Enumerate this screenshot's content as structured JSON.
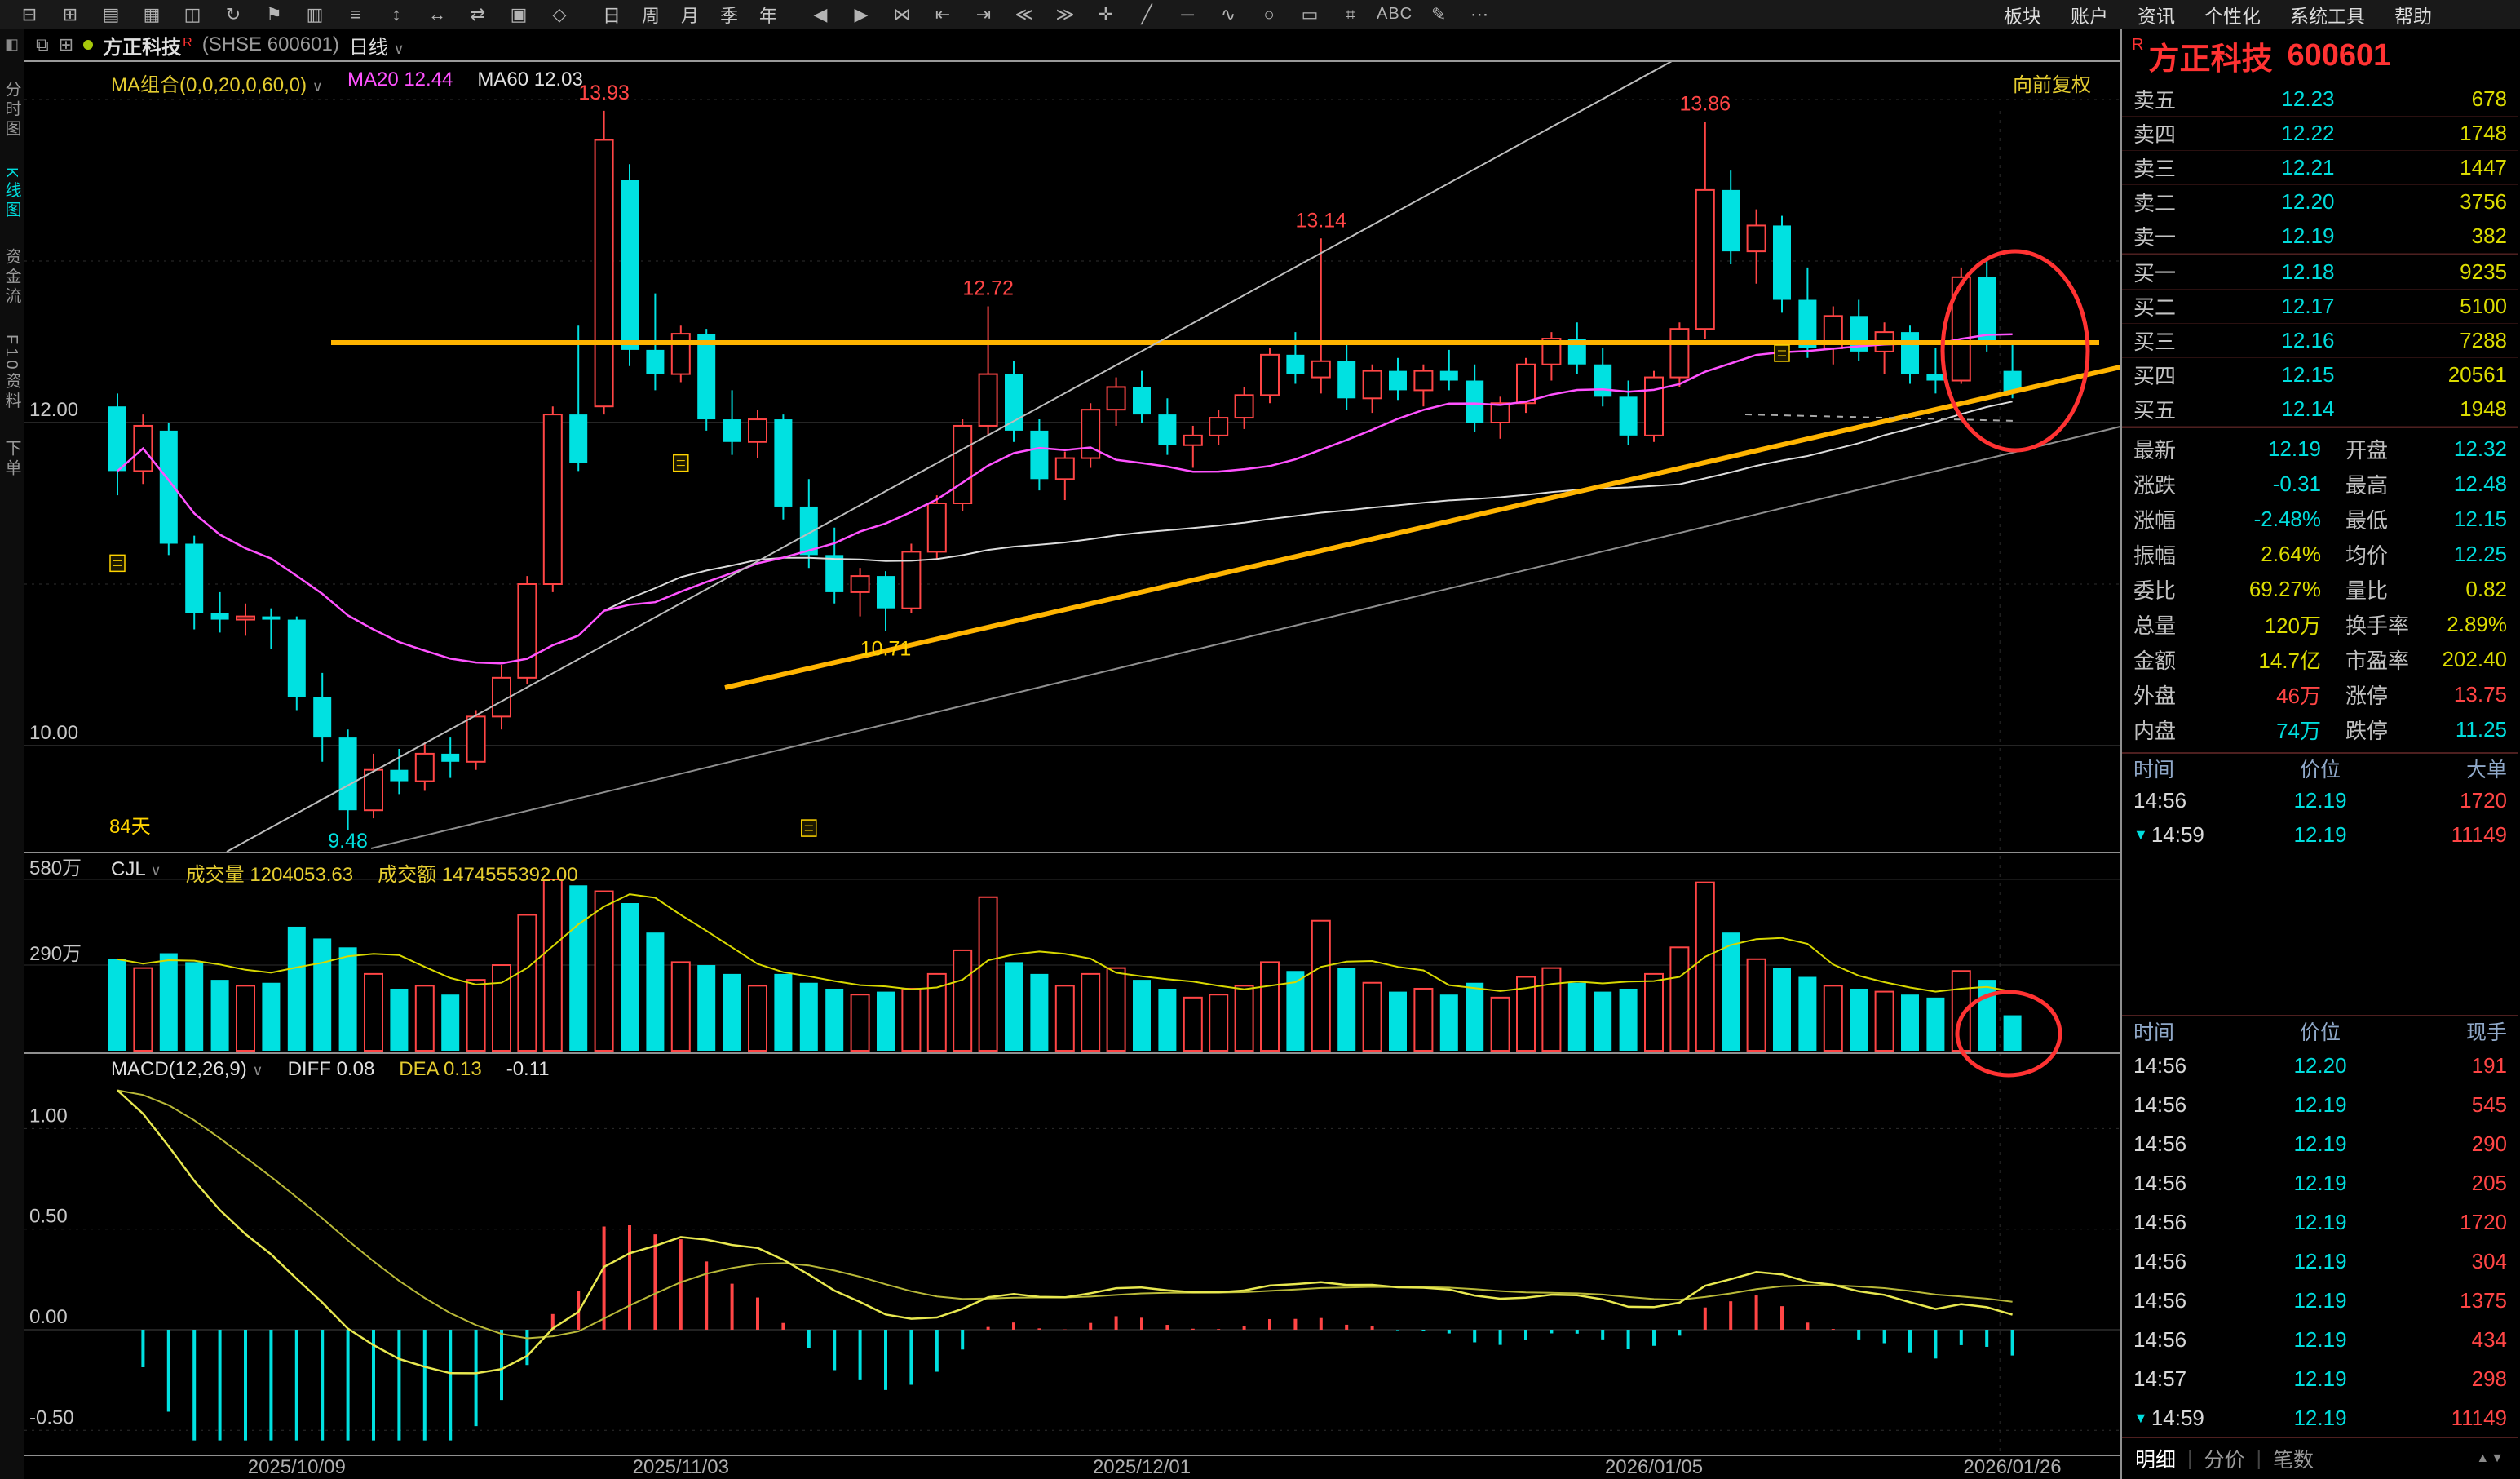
{
  "toolbar": {
    "icons_left": [
      {
        "name": "link-windows-icon",
        "glyph": "⊟"
      },
      {
        "name": "grid-layout-icon",
        "glyph": "⊞"
      },
      {
        "name": "chart-panel-icon",
        "glyph": "▤"
      },
      {
        "name": "quote-board-icon",
        "glyph": "▦"
      },
      {
        "name": "split-view-icon",
        "glyph": "◫"
      },
      {
        "name": "refresh-icon",
        "glyph": "↻"
      },
      {
        "name": "alert-icon",
        "glyph": "⚑"
      },
      {
        "name": "info-panel-icon",
        "glyph": "▥"
      },
      {
        "name": "list-view-icon",
        "glyph": "≡"
      },
      {
        "name": "expand-vertical-icon",
        "glyph": "↕"
      },
      {
        "name": "expand-horizontal-icon",
        "glyph": "↔"
      },
      {
        "name": "swap-panels-icon",
        "glyph": "⇄"
      },
      {
        "name": "overlay-icon",
        "glyph": "▣"
      },
      {
        "name": "indicator-icon",
        "glyph": "◇"
      }
    ],
    "periods": [
      "日",
      "周",
      "月",
      "季",
      "年"
    ],
    "icons_mid": [
      {
        "name": "prev-bar-icon",
        "glyph": "◀"
      },
      {
        "name": "next-bar-icon",
        "glyph": "▶"
      },
      {
        "name": "compare-icon",
        "glyph": "⋈"
      },
      {
        "name": "jump-start-icon",
        "glyph": "⇤"
      },
      {
        "name": "jump-end-icon",
        "glyph": "⇥"
      },
      {
        "name": "zoom-out-icon",
        "glyph": "≪"
      },
      {
        "name": "zoom-in-icon",
        "glyph": "≫"
      },
      {
        "name": "crosshair-tool-icon",
        "glyph": "✛"
      },
      {
        "name": "trendline-tool-icon",
        "glyph": "╱"
      },
      {
        "name": "horizontal-line-tool-icon",
        "glyph": "─"
      },
      {
        "name": "wave-tool-icon",
        "glyph": "∿"
      },
      {
        "name": "ellipse-tool-icon",
        "glyph": "○"
      },
      {
        "name": "rectangle-tool-icon",
        "glyph": "▭"
      },
      {
        "name": "channel-tool-icon",
        "glyph": "⌗"
      }
    ],
    "text_tool": "ABC",
    "icons_right": [
      {
        "name": "pen-tool-icon",
        "glyph": "✎"
      },
      {
        "name": "more-tools-icon",
        "glyph": "⋯"
      }
    ],
    "menu": [
      "板块",
      "账户",
      "资讯",
      "个性化",
      "系统工具",
      "帮助"
    ]
  },
  "sidebar": {
    "top_icon": "◧",
    "items": [
      {
        "label": "分时图",
        "active": false
      },
      {
        "label": "K线图",
        "active": true
      },
      {
        "label": "资金流",
        "active": false
      },
      {
        "label": "F10资料",
        "active": false
      },
      {
        "label": "下单",
        "active": false
      }
    ]
  },
  "chart_tab": {
    "win_icon1": "⧉",
    "win_icon2": "⊞",
    "stock_name": "方正科技",
    "r_mark": "R",
    "code": "(SHSE  600601)",
    "period": "日线",
    "caret": "∨"
  },
  "price_header": {
    "ma_group": "MA组合(0,0,20,0,60,0)",
    "caret": "∨",
    "ma20": "MA20 12.44",
    "ma60": "MA60 12.03",
    "adjust": "向前复权"
  },
  "volume_header": {
    "indicator": "CJL",
    "caret": "∨",
    "volume": "成交量 1204053.63",
    "amount": "成交额 1474555392.00"
  },
  "macd_header": {
    "indicator": "MACD(12,26,9)",
    "caret": "∨",
    "diff": "DIFF 0.08",
    "dea": "DEA 0.13",
    "value": "-0.11"
  },
  "chart_data": {
    "type": "candlestick",
    "title": "方正科技 600601 日线 (前复权)",
    "panels": [
      "price+MA20+MA60",
      "volume(CJL)+MA5",
      "MACD(12,26,9)"
    ],
    "ylim_price": [
      9.35,
      14.2
    ],
    "ylim_volume_wan": [
      0,
      650
    ],
    "ylim_macd": [
      -0.6,
      1.4
    ],
    "series": {
      "candles_ohlcv_wan": [
        [
          12.1,
          12.18,
          11.55,
          11.7,
          310
        ],
        [
          11.7,
          12.05,
          11.62,
          11.98,
          280
        ],
        [
          11.95,
          12.0,
          11.18,
          11.25,
          330
        ],
        [
          11.25,
          11.3,
          10.72,
          10.82,
          300
        ],
        [
          10.82,
          10.95,
          10.7,
          10.78,
          240
        ],
        [
          10.78,
          10.88,
          10.68,
          10.8,
          220
        ],
        [
          10.8,
          10.85,
          10.6,
          10.78,
          230
        ],
        [
          10.78,
          10.8,
          10.22,
          10.3,
          420
        ],
        [
          10.3,
          10.45,
          9.9,
          10.05,
          380
        ],
        [
          10.05,
          10.1,
          9.48,
          9.6,
          350
        ],
        [
          9.6,
          9.95,
          9.55,
          9.85,
          260
        ],
        [
          9.85,
          9.98,
          9.7,
          9.78,
          210
        ],
        [
          9.78,
          10.02,
          9.72,
          9.95,
          220
        ],
        [
          9.95,
          10.05,
          9.8,
          9.9,
          190
        ],
        [
          9.9,
          10.22,
          9.85,
          10.18,
          240
        ],
        [
          10.18,
          10.5,
          10.1,
          10.42,
          290
        ],
        [
          10.42,
          11.05,
          10.38,
          11.0,
          460
        ],
        [
          11.0,
          12.1,
          10.95,
          12.05,
          590
        ],
        [
          12.05,
          12.6,
          11.7,
          11.75,
          560
        ],
        [
          12.1,
          13.93,
          12.05,
          13.75,
          540
        ],
        [
          13.5,
          13.6,
          12.35,
          12.45,
          500
        ],
        [
          12.45,
          12.8,
          12.2,
          12.3,
          400
        ],
        [
          12.3,
          12.6,
          12.25,
          12.55,
          300
        ],
        [
          12.55,
          12.58,
          11.95,
          12.02,
          290
        ],
        [
          12.02,
          12.2,
          11.8,
          11.88,
          260
        ],
        [
          11.88,
          12.08,
          11.78,
          12.02,
          220
        ],
        [
          12.02,
          12.05,
          11.4,
          11.48,
          260
        ],
        [
          11.48,
          11.65,
          11.1,
          11.18,
          230
        ],
        [
          11.18,
          11.35,
          10.88,
          10.95,
          210
        ],
        [
          10.95,
          11.1,
          10.8,
          11.05,
          190
        ],
        [
          11.05,
          11.08,
          10.71,
          10.85,
          200
        ],
        [
          10.85,
          11.25,
          10.82,
          11.2,
          210
        ],
        [
          11.2,
          11.55,
          11.15,
          11.5,
          260
        ],
        [
          11.5,
          12.02,
          11.45,
          11.98,
          340
        ],
        [
          11.98,
          12.72,
          11.92,
          12.3,
          520
        ],
        [
          12.3,
          12.38,
          11.88,
          11.95,
          300
        ],
        [
          11.95,
          12.02,
          11.58,
          11.65,
          260
        ],
        [
          11.65,
          11.82,
          11.52,
          11.78,
          220
        ],
        [
          11.78,
          12.12,
          11.72,
          12.08,
          260
        ],
        [
          12.08,
          12.28,
          11.98,
          12.22,
          280
        ],
        [
          12.22,
          12.32,
          12.0,
          12.05,
          240
        ],
        [
          12.05,
          12.15,
          11.8,
          11.86,
          210
        ],
        [
          11.86,
          11.98,
          11.72,
          11.92,
          180
        ],
        [
          11.92,
          12.08,
          11.86,
          12.03,
          190
        ],
        [
          12.03,
          12.22,
          11.96,
          12.17,
          220
        ],
        [
          12.17,
          12.46,
          12.12,
          12.42,
          300
        ],
        [
          12.42,
          12.56,
          12.24,
          12.3,
          270
        ],
        [
          12.28,
          13.14,
          12.18,
          12.38,
          440
        ],
        [
          12.38,
          12.5,
          12.08,
          12.15,
          280
        ],
        [
          12.15,
          12.36,
          12.06,
          12.32,
          230
        ],
        [
          12.32,
          12.4,
          12.14,
          12.2,
          200
        ],
        [
          12.2,
          12.36,
          12.1,
          12.32,
          210
        ],
        [
          12.32,
          12.45,
          12.2,
          12.26,
          190
        ],
        [
          12.26,
          12.36,
          11.94,
          12.0,
          230
        ],
        [
          12.0,
          12.16,
          11.9,
          12.12,
          180
        ],
        [
          12.12,
          12.4,
          12.06,
          12.36,
          250
        ],
        [
          12.36,
          12.56,
          12.26,
          12.52,
          280
        ],
        [
          12.52,
          12.62,
          12.3,
          12.36,
          230
        ],
        [
          12.36,
          12.46,
          12.1,
          12.16,
          200
        ],
        [
          12.16,
          12.26,
          11.86,
          11.92,
          210
        ],
        [
          11.92,
          12.32,
          11.88,
          12.28,
          260
        ],
        [
          12.28,
          12.62,
          12.22,
          12.58,
          350
        ],
        [
          12.58,
          13.86,
          12.52,
          13.44,
          570
        ],
        [
          13.44,
          13.56,
          12.98,
          13.06,
          400
        ],
        [
          13.06,
          13.32,
          12.86,
          13.22,
          310
        ],
        [
          13.22,
          13.28,
          12.68,
          12.76,
          280
        ],
        [
          12.76,
          12.96,
          12.4,
          12.46,
          250
        ],
        [
          12.46,
          12.72,
          12.36,
          12.66,
          220
        ],
        [
          12.66,
          12.76,
          12.38,
          12.44,
          210
        ],
        [
          12.44,
          12.62,
          12.3,
          12.56,
          200
        ],
        [
          12.56,
          12.6,
          12.24,
          12.3,
          190
        ],
        [
          12.3,
          12.46,
          12.18,
          12.26,
          180
        ],
        [
          12.26,
          12.96,
          12.24,
          12.9,
          270
        ],
        [
          12.9,
          13.0,
          12.44,
          12.5,
          240
        ],
        [
          12.32,
          12.48,
          12.15,
          12.19,
          120
        ]
      ]
    },
    "x_ticks": [
      {
        "i": 7,
        "label": "2025/10/09"
      },
      {
        "i": 22,
        "label": "2025/11/03"
      },
      {
        "i": 40,
        "label": "2025/12/01"
      },
      {
        "i": 60,
        "label": "2026/01/05"
      },
      {
        "i": 74,
        "label": "2026/01/26"
      }
    ],
    "price_ticks": [
      {
        "v": 12,
        "label": "12.00"
      },
      {
        "v": 10,
        "label": "10.00"
      }
    ],
    "price_gridlines": [
      14,
      13,
      11
    ],
    "volume_ticks": [
      {
        "v": 580,
        "label": "580万"
      },
      {
        "v": 290,
        "label": "290万"
      }
    ],
    "macd_ticks": [
      {
        "v": 1,
        "label": "1.00"
      },
      {
        "v": 0.5,
        "label": "0.50"
      },
      {
        "v": 0,
        "label": "0.00"
      },
      {
        "v": -0.5,
        "label": "-0.50"
      }
    ],
    "callouts": [
      {
        "i": 19,
        "price": 13.93,
        "text": "13.93",
        "color": "#ff4545",
        "pos": "above"
      },
      {
        "i": 62,
        "price": 13.86,
        "text": "13.86",
        "color": "#ff4545",
        "pos": "above"
      },
      {
        "i": 47,
        "price": 13.14,
        "text": "13.14",
        "color": "#ff4545",
        "pos": "above"
      },
      {
        "i": 34,
        "price": 12.72,
        "text": "12.72",
        "color": "#ff4545",
        "pos": "above"
      },
      {
        "i": 30,
        "price": 10.71,
        "text": "10.71",
        "color": "#ffd400",
        "pos": "below"
      },
      {
        "i": 9,
        "price": 9.48,
        "text": "9.48",
        "color": "#00e1e1",
        "pos": "below"
      }
    ],
    "day_count_label": "84天",
    "event_markers": [
      {
        "i": 0,
        "price": 11.18
      },
      {
        "i": 22,
        "price": 11.8
      },
      {
        "i": 27,
        "price": 9.54
      },
      {
        "i": 65,
        "price": 12.48
      }
    ],
    "draw_lines": [
      {
        "x1": 376,
        "y1": 344,
        "x2": 2544,
        "y2": 344,
        "color": "#ffb400",
        "w": 6,
        "dash": ""
      },
      {
        "x1": 859,
        "y1": 767,
        "x2": 2574,
        "y2": 373,
        "color": "#ffb400",
        "w": 6,
        "dash": ""
      },
      {
        "x1": 248,
        "y1": 968,
        "x2": 2031,
        "y2": -7,
        "color": "#bdbdbd",
        "w": 2,
        "dash": ""
      },
      {
        "x1": 425,
        "y1": 964,
        "x2": 2574,
        "y2": 446,
        "color": "#8f8f8f",
        "w": 2,
        "dash": ""
      },
      {
        "x1": 2110,
        "y1": 432,
        "x2": 2445,
        "y2": 440,
        "color": "#aaaaaa",
        "w": 2,
        "dash": "8 8"
      }
    ],
    "draw_ellipses": [
      {
        "cx": 2441,
        "cy": 354,
        "rx": 89,
        "ry": 122
      },
      {
        "cx": 2433,
        "cy": 1191,
        "rx": 63,
        "ry": 51
      }
    ],
    "colors": {
      "up": "#ff4545",
      "down": "#00e1e1",
      "ma20": "#ff52ff",
      "ma60": "#dcdcdc",
      "vol_ma": "#d8d800",
      "diff": "#e8e850",
      "dea": "#b8b838",
      "annotation": "#ffb400",
      "circle": "#ff3232",
      "grid": "#2e2e2e",
      "grid_bright": "#4a4a4a",
      "label": "#c8c8c8",
      "date": "#b0b0b0",
      "marker": "#ffd400",
      "separator": "#8f8f8f"
    }
  },
  "quote": {
    "r_badge": "R",
    "title": "方正科技",
    "code": "600601",
    "asks": [
      {
        "label": "卖五",
        "price": "12.23",
        "qty": "678"
      },
      {
        "label": "卖四",
        "price": "12.22",
        "qty": "1748"
      },
      {
        "label": "卖三",
        "price": "12.21",
        "qty": "1447"
      },
      {
        "label": "卖二",
        "price": "12.20",
        "qty": "3756"
      },
      {
        "label": "卖一",
        "price": "12.19",
        "qty": "382"
      }
    ],
    "bids": [
      {
        "label": "买一",
        "price": "12.18",
        "qty": "9235"
      },
      {
        "label": "买二",
        "price": "12.17",
        "qty": "5100"
      },
      {
        "label": "买三",
        "price": "12.16",
        "qty": "7288"
      },
      {
        "label": "买四",
        "price": "12.15",
        "qty": "20561"
      },
      {
        "label": "买五",
        "price": "12.14",
        "qty": "1948"
      }
    ],
    "stats": [
      [
        {
          "l": "最新",
          "v": "12.19",
          "c": "down"
        },
        {
          "l": "开盘",
          "v": "12.32",
          "c": "down"
        }
      ],
      [
        {
          "l": "涨跌",
          "v": "-0.31",
          "c": "down"
        },
        {
          "l": "最高",
          "v": "12.48",
          "c": "down"
        }
      ],
      [
        {
          "l": "涨幅",
          "v": "-2.48%",
          "c": "down"
        },
        {
          "l": "最低",
          "v": "12.15",
          "c": "down"
        }
      ],
      [
        {
          "l": "振幅",
          "v": "2.64%",
          "c": "neutral"
        },
        {
          "l": "均价",
          "v": "12.25",
          "c": "down"
        }
      ],
      [
        {
          "l": "委比",
          "v": "69.27%",
          "c": "neutral"
        },
        {
          "l": "量比",
          "v": "0.82",
          "c": "neutral"
        }
      ],
      [
        {
          "l": "总量",
          "v": "120万",
          "c": "neutral"
        },
        {
          "l": "换手率",
          "v": "2.89%",
          "c": "neutral"
        }
      ],
      [
        {
          "l": "金额",
          "v": "14.7亿",
          "c": "neutral"
        },
        {
          "l": "市盈率",
          "v": "202.40",
          "c": "neutral"
        }
      ],
      [
        {
          "l": "外盘",
          "v": "46万",
          "c": "up"
        },
        {
          "l": "涨停",
          "v": "13.75",
          "c": "up"
        }
      ],
      [
        {
          "l": "内盘",
          "v": "74万",
          "c": "down"
        },
        {
          "l": "跌停",
          "v": "11.25",
          "c": "down"
        }
      ]
    ],
    "big_orders": {
      "headers": [
        "时间",
        "价位",
        "大单"
      ],
      "rows": [
        {
          "t": "14:56",
          "p": "12.19",
          "q": "1720",
          "a": ""
        },
        {
          "t": "14:59",
          "p": "12.19",
          "q": "11149",
          "a": "▼"
        }
      ]
    },
    "ticks": {
      "headers": [
        "时间",
        "价位",
        "现手"
      ],
      "rows": [
        {
          "t": "14:56",
          "p": "12.20",
          "q": "191",
          "a": ""
        },
        {
          "t": "14:56",
          "p": "12.19",
          "q": "545",
          "a": ""
        },
        {
          "t": "14:56",
          "p": "12.19",
          "q": "290",
          "a": ""
        },
        {
          "t": "14:56",
          "p": "12.19",
          "q": "205",
          "a": ""
        },
        {
          "t": "14:56",
          "p": "12.19",
          "q": "1720",
          "a": ""
        },
        {
          "t": "14:56",
          "p": "12.19",
          "q": "304",
          "a": ""
        },
        {
          "t": "14:56",
          "p": "12.19",
          "q": "1375",
          "a": ""
        },
        {
          "t": "14:56",
          "p": "12.19",
          "q": "434",
          "a": ""
        },
        {
          "t": "14:57",
          "p": "12.19",
          "q": "298",
          "a": ""
        },
        {
          "t": "14:59",
          "p": "12.19",
          "q": "11149",
          "a": "▼"
        }
      ]
    },
    "tabs": [
      {
        "label": "明细",
        "active": true
      },
      {
        "label": "分价",
        "active": false
      },
      {
        "label": "笔数",
        "active": false
      }
    ],
    "scroll_arrows": "▲▼"
  }
}
